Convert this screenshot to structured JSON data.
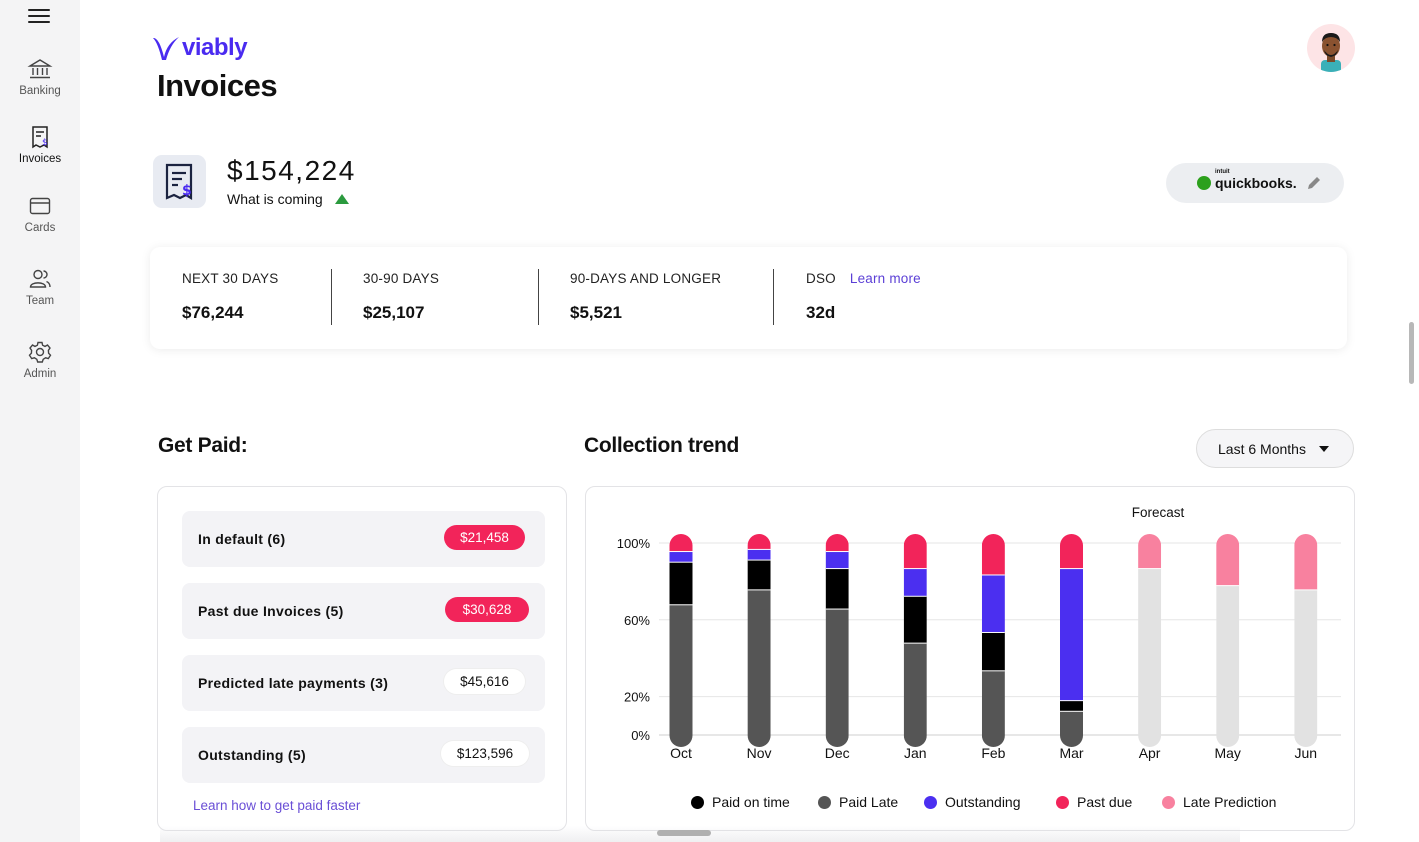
{
  "app": {
    "logo_text": "viably",
    "page_title": "Invoices",
    "brand_color": "#4a2bf0"
  },
  "sidebar": {
    "items": [
      {
        "label": "Banking",
        "icon": "bank-icon",
        "active": false
      },
      {
        "label": "Invoices",
        "icon": "invoice-icon",
        "active": true
      },
      {
        "label": "Cards",
        "icon": "card-icon",
        "active": false
      },
      {
        "label": "Team",
        "icon": "team-icon",
        "active": false
      },
      {
        "label": "Admin",
        "icon": "gear-icon",
        "active": false
      }
    ]
  },
  "summary": {
    "amount": "$154,224",
    "subtitle": "What is coming",
    "trend": "up"
  },
  "integration": {
    "brand_small": "intuit",
    "brand": "quickbooks",
    "brand_suffix": "."
  },
  "stats": [
    {
      "label": "NEXT 30 DAYS",
      "value": "$76,244"
    },
    {
      "label": "30-90 DAYS",
      "value": "$25,107"
    },
    {
      "label": "90-DAYS AND LONGER",
      "value": "$5,521"
    },
    {
      "label": "DSO",
      "value": "32d",
      "link": "Learn more"
    }
  ],
  "get_paid": {
    "title": "Get Paid:",
    "rows": [
      {
        "label": "In default (6)",
        "amount": "$21,458",
        "style": "red"
      },
      {
        "label": "Past due Invoices (5)",
        "amount": "$30,628",
        "style": "red"
      },
      {
        "label": "Predicted late payments (3)",
        "amount": "$45,616",
        "style": "white"
      },
      {
        "label": "Outstanding (5)",
        "amount": "$123,596",
        "style": "white"
      }
    ],
    "link": "Learn how to get paid faster"
  },
  "collection": {
    "title": "Collection trend",
    "range": "Last 6 Months",
    "forecast_label": "Forecast"
  },
  "chart_data": {
    "type": "bar",
    "stacked": true,
    "categories": [
      "Oct",
      "Nov",
      "Dec",
      "Jan",
      "Feb",
      "Mar",
      "Apr",
      "May",
      "Jun"
    ],
    "y_ticks": [
      "100%",
      "60%",
      "20%",
      "0%"
    ],
    "grid": true,
    "legend_position": "bottom",
    "colors": {
      "Paid on time": "#000000",
      "Paid Late": "#555555",
      "Outstanding": "#4b2ff0",
      "Past due": "#f2245a",
      "Late Prediction": "#f8819f",
      "Forecast Base": "#e2e2e2"
    },
    "series": [
      {
        "name": "Paid Late",
        "values": [
          67,
          74,
          65,
          49,
          36,
          17,
          0,
          0,
          0
        ]
      },
      {
        "name": "Paid on time",
        "values": [
          20,
          14,
          19,
          22,
          18,
          5,
          0,
          0,
          0
        ]
      },
      {
        "name": "Outstanding",
        "values": [
          5,
          5,
          8,
          13,
          27,
          62,
          0,
          0,
          0
        ]
      },
      {
        "name": "Past due",
        "values": [
          8,
          7,
          8,
          16,
          19,
          16,
          0,
          0,
          0
        ]
      },
      {
        "name": "Late Prediction",
        "values": [
          0,
          0,
          0,
          0,
          0,
          0,
          16,
          24,
          26
        ]
      }
    ],
    "forecast_base": [
      0,
      0,
      0,
      0,
      0,
      0,
      84,
      76,
      74
    ],
    "forecast_categories": [
      "Apr",
      "May",
      "Jun"
    ],
    "legend": [
      "Paid on time",
      "Paid Late",
      "Outstanding",
      "Past due",
      "Late Prediction"
    ]
  }
}
